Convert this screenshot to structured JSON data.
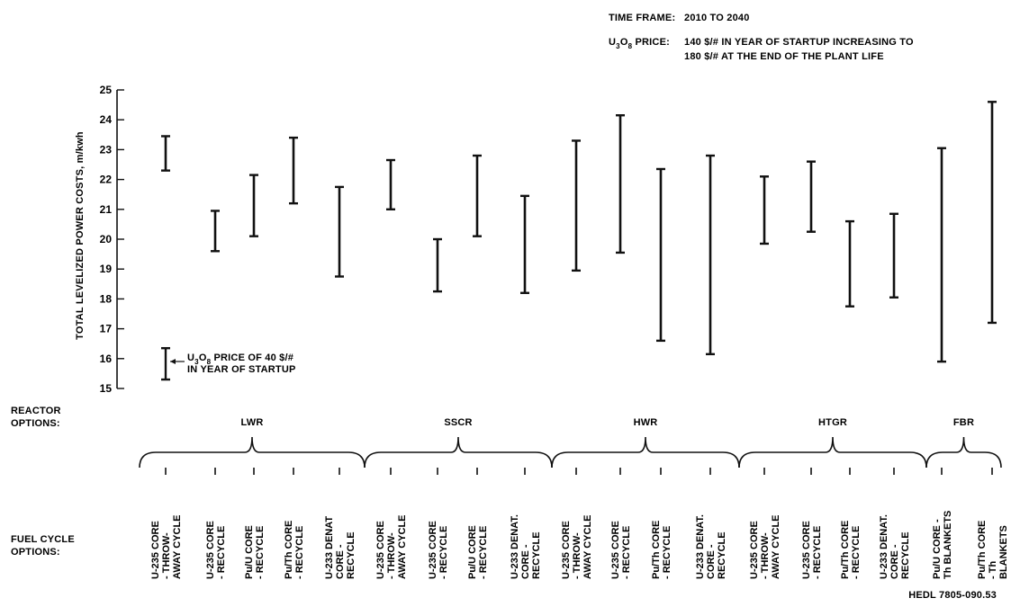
{
  "header": {
    "time_frame_label": "TIME FRAME:",
    "time_frame_value": "2010 TO 2040",
    "price_label_pre": "U",
    "price_label_sub1": "3",
    "price_label_mid": "O",
    "price_label_sub2": "8",
    "price_label_post": " PRICE:",
    "price_line1": "140 $/# IN YEAR OF STARTUP INCREASING TO",
    "price_line2": "180 $/# AT THE END OF THE PLANT LIFE"
  },
  "annotation": {
    "pre": "U",
    "sub1": "3",
    "mid": "O",
    "sub2": "8",
    "line1_post": " PRICE OF 40 $/#",
    "line2": "IN YEAR OF STARTUP"
  },
  "row_labels": {
    "reactor_line1": "REACTOR",
    "reactor_line2": "OPTIONS:",
    "fuel_line1": "FUEL CYCLE",
    "fuel_line2": "OPTIONS:"
  },
  "footer_id": "HEDL 7805-090.53",
  "chart_data": {
    "type": "range-bar",
    "ylabel": "TOTAL LEVELIZED POWER COSTS, m/kwh",
    "ylim": [
      15,
      25
    ],
    "yticks": [
      "15",
      "16",
      "17",
      "18",
      "19",
      "20",
      "21",
      "22",
      "23",
      "24",
      "25"
    ],
    "legend_range": [
      15.3,
      16.35
    ],
    "groups": [
      {
        "name": "LWR",
        "options": [
          {
            "lines": [
              "U-235 CORE",
              "- THROW-",
              "AWAY CYCLE"
            ],
            "low": 22.3,
            "high": 23.45
          },
          {
            "lines": [
              "U-235 CORE",
              "- RECYCLE"
            ],
            "low": 19.6,
            "high": 20.95
          },
          {
            "lines": [
              "Pu/U CORE",
              "- RECYCLE"
            ],
            "low": 20.1,
            "high": 22.15
          },
          {
            "lines": [
              "Pu/Th CORE",
              "- RECYCLE"
            ],
            "low": 21.2,
            "high": 23.4
          },
          {
            "lines": [
              "U-233 DENAT",
              "CORE -",
              "RECYCLE"
            ],
            "low": 18.75,
            "high": 21.75
          }
        ]
      },
      {
        "name": "SSCR",
        "options": [
          {
            "lines": [
              "U-235 CORE",
              "- THROW-",
              "AWAY CYCLE"
            ],
            "low": 21.0,
            "high": 22.65
          },
          {
            "lines": [
              "U-235 CORE",
              "- RECYCLE"
            ],
            "low": 18.25,
            "high": 20.0
          },
          {
            "lines": [
              "Pu/U CORE",
              "- RECYCLE"
            ],
            "low": 20.1,
            "high": 22.8
          },
          {
            "lines": [
              "U-233 DENAT.",
              "CORE -",
              "RECYCLE"
            ],
            "low": 18.2,
            "high": 21.45
          }
        ]
      },
      {
        "name": "HWR",
        "options": [
          {
            "lines": [
              "U-235 CORE",
              "- THROW-",
              "AWAY CYCLE"
            ],
            "low": 18.95,
            "high": 23.3
          },
          {
            "lines": [
              "U-235 CORE",
              "- RECYCLE"
            ],
            "low": 19.55,
            "high": 24.15
          },
          {
            "lines": [
              "Pu/Th CORE",
              "- RECYCLE"
            ],
            "low": 16.6,
            "high": 22.35
          },
          {
            "lines": [
              "U-233 DENAT.",
              "CORE -",
              "RECYCLE"
            ],
            "low": 16.15,
            "high": 22.8
          }
        ]
      },
      {
        "name": "HTGR",
        "options": [
          {
            "lines": [
              "U-235 CORE",
              "- THROW-",
              "AWAY CYCLE"
            ],
            "low": 19.85,
            "high": 22.1
          },
          {
            "lines": [
              "U-235 CORE",
              "- RECYCLE"
            ],
            "low": 20.25,
            "high": 22.6
          },
          {
            "lines": [
              "Pu/Th CORE",
              "- RECYCLE"
            ],
            "low": 17.75,
            "high": 20.6
          },
          {
            "lines": [
              "U-233 DENAT.",
              "CORE -",
              "RECYCLE"
            ],
            "low": 18.05,
            "high": 20.85
          }
        ]
      },
      {
        "name": "FBR",
        "options": [
          {
            "lines": [
              "Pu/U CORE -",
              "Th BLANKETS"
            ],
            "low": 15.9,
            "high": 23.05
          },
          {
            "lines": [
              "Pu/Th CORE",
              "- Th",
              "BLANKETS"
            ],
            "low": 17.2,
            "high": 24.6
          }
        ]
      }
    ]
  }
}
